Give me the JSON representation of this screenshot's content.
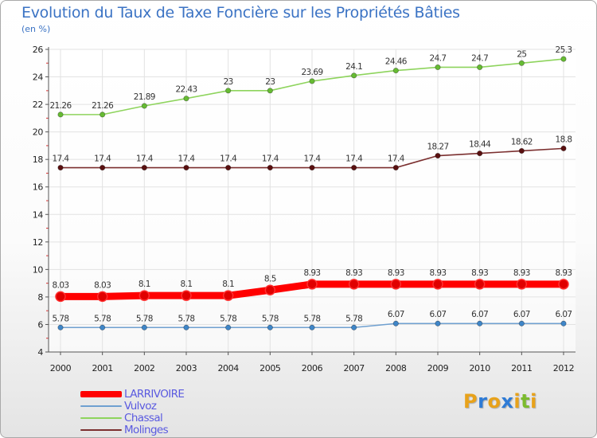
{
  "title": "Evolution du Taux de Taxe Foncière sur les Propriétés Bâties",
  "unit_label": "(en %)",
  "logo": {
    "letters": [
      "P",
      "r",
      "o",
      "x",
      "i",
      "t",
      "i"
    ],
    "colors": [
      "#e8a21a",
      "#2e7bd6",
      "#e8a21a",
      "#2e7bd6",
      "#e8a21a",
      "#7cbb2e",
      "#e8a21a"
    ]
  },
  "chart_data": {
    "type": "line",
    "title": "Evolution du Taux de Taxe Foncière sur les Propriétés Bâties",
    "ylabel": "(en %)",
    "xlabel": "",
    "x": [
      "2000",
      "2001",
      "2002",
      "2003",
      "2004",
      "2005",
      "2006",
      "2007",
      "2008",
      "2009",
      "2010",
      "2011",
      "2012"
    ],
    "ylim": [
      4,
      26
    ],
    "yticks": [
      "4",
      "6",
      "8",
      "10",
      "12",
      "14",
      "16",
      "18",
      "20",
      "22",
      "24",
      "26"
    ],
    "grid": true,
    "series": [
      {
        "name": "Chassal",
        "color": "#8ed45d",
        "marker": "#66bb33",
        "values": [
          21.26,
          21.26,
          21.89,
          22.43,
          23,
          23,
          23.69,
          24.1,
          24.46,
          24.7,
          24.7,
          25,
          25.3
        ],
        "labels": [
          "21.26",
          "21.26",
          "21.89",
          "22.43",
          "23",
          "23",
          "23.69",
          "24.1",
          "24.46",
          "24.7",
          "24.7",
          "25",
          "25.3"
        ]
      },
      {
        "name": "Molinges",
        "color": "#7b2f2f",
        "marker": "#5a1010",
        "values": [
          17.4,
          17.4,
          17.4,
          17.4,
          17.4,
          17.4,
          17.4,
          17.4,
          17.4,
          18.27,
          18.44,
          18.62,
          18.8
        ],
        "labels": [
          "17.4",
          "17.4",
          "17.4",
          "17.4",
          "17.4",
          "17.4",
          "17.4",
          "17.4",
          "17.4",
          "18.27",
          "18.44",
          "18.62",
          "18.8"
        ]
      },
      {
        "name": "LARRIVOIRE",
        "color": "#ff0000",
        "marker": "#e00000",
        "values": [
          8.03,
          8.03,
          8.1,
          8.1,
          8.1,
          8.5,
          8.93,
          8.93,
          8.93,
          8.93,
          8.93,
          8.93,
          8.93
        ],
        "labels": [
          "8.03",
          "8.03",
          "8.1",
          "8.1",
          "8.1",
          "8.5",
          "8.93",
          "8.93",
          "8.93",
          "8.93",
          "8.93",
          "8.93",
          "8.93"
        ]
      },
      {
        "name": "Vulvoz",
        "color": "#6fa0d0",
        "marker": "#3f86c8",
        "values": [
          5.78,
          5.78,
          5.78,
          5.78,
          5.78,
          5.78,
          5.78,
          5.78,
          6.07,
          6.07,
          6.07,
          6.07,
          6.07
        ],
        "labels": [
          "5.78",
          "5.78",
          "5.78",
          "5.78",
          "5.78",
          "5.78",
          "5.78",
          "5.78",
          "6.07",
          "6.07",
          "6.07",
          "6.07",
          "6.07"
        ]
      }
    ],
    "legend": [
      {
        "name": "LARRIVOIRE",
        "color": "#ff0000"
      },
      {
        "name": "Vulvoz",
        "color": "#6fa0d0"
      },
      {
        "name": "Chassal",
        "color": "#8ed45d"
      },
      {
        "name": "Molinges",
        "color": "#7b2f2f"
      }
    ]
  }
}
